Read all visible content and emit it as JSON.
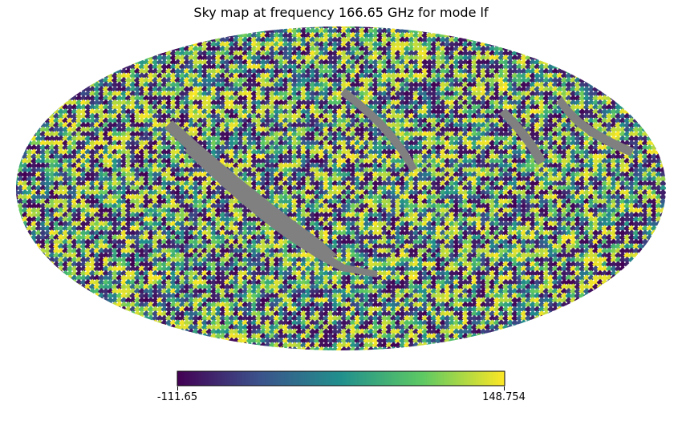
{
  "chart_data": {
    "type": "heatmap",
    "projection": "mollweide",
    "title": "Sky map at frequency 166.65 GHz for mode lf",
    "colormap": "viridis",
    "colormap_stops": [
      "#440154",
      "#3b528b",
      "#21908d",
      "#5dc963",
      "#fde725"
    ],
    "masked_color": "#808080",
    "colorbar": {
      "min": -111.65,
      "max": 148.754,
      "min_label": "-111.65",
      "max_label": "148.754"
    },
    "xlabel": "",
    "ylabel": "",
    "description_values": "random pixel noise spanning the full colorbar range, with grey masked bands"
  }
}
